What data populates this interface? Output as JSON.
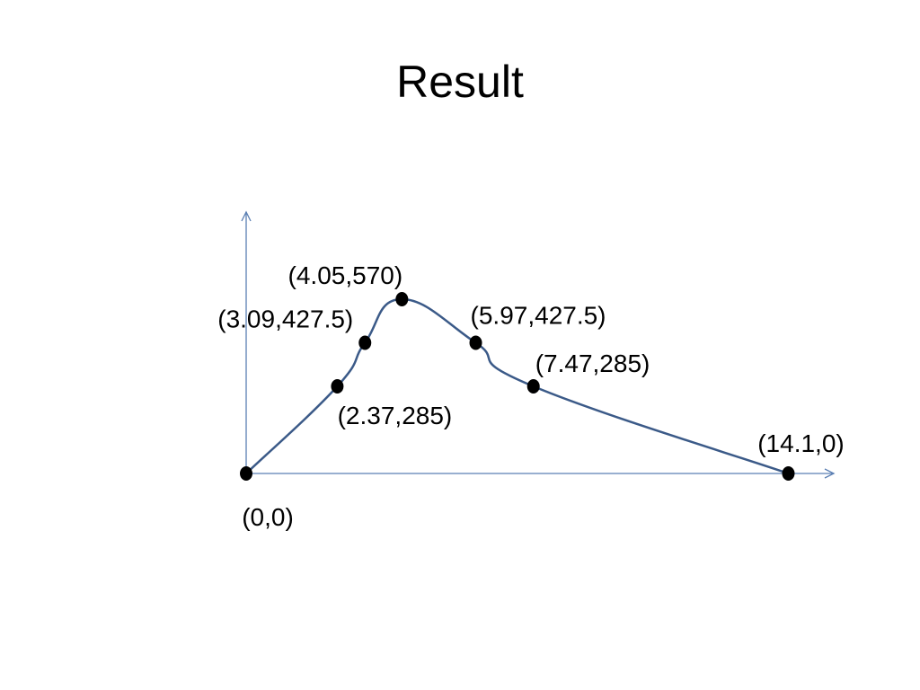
{
  "title": "Result",
  "colors": {
    "axis": "#5b7fb3",
    "curve": "#3b5a88",
    "point": "#000000"
  },
  "chart_data": {
    "type": "line",
    "title": "Result",
    "xlabel": "",
    "ylabel": "",
    "grid": false,
    "smooth": true,
    "points": [
      {
        "x": 0,
        "y": 0,
        "label": "(0,0)"
      },
      {
        "x": 2.37,
        "y": 285,
        "label": "(2.37,285)"
      },
      {
        "x": 3.09,
        "y": 427.5,
        "label": "(3.09,427.5)"
      },
      {
        "x": 4.05,
        "y": 570,
        "label": "(4.05,570)"
      },
      {
        "x": 5.97,
        "y": 427.5,
        "label": "(5.97,427.5)"
      },
      {
        "x": 7.47,
        "y": 285,
        "label": "(7.47,285)"
      },
      {
        "x": 14.1,
        "y": 0,
        "label": "(14.1,0)"
      }
    ]
  }
}
